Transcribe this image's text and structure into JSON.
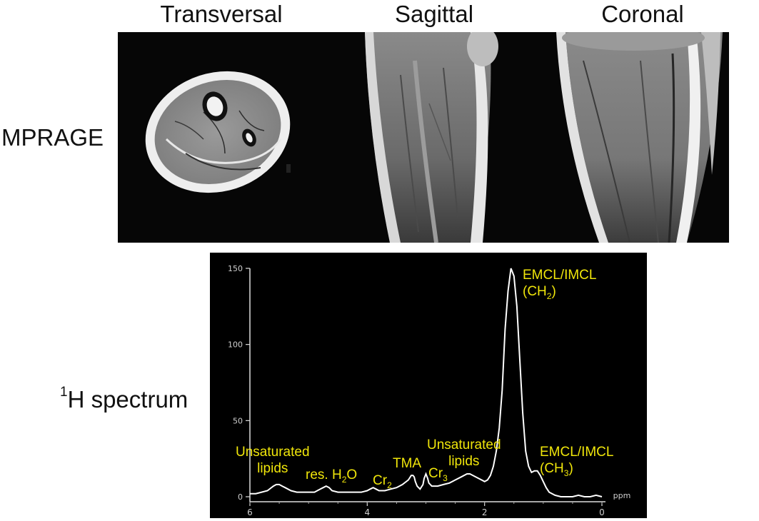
{
  "views": {
    "transversal": "Transversal",
    "sagittal": "Sagittal",
    "coronal": "Coronal"
  },
  "rows": {
    "mprage": "MPRAGE",
    "spectrum_iso": "1",
    "spectrum_rest": "H spectrum"
  },
  "colors": {
    "annotation": "#f0e60a",
    "spectrum_line": "#ffffff",
    "background": "#000000"
  },
  "chart_data": {
    "type": "line",
    "title": "",
    "xlabel": "ppm",
    "ylabel": "",
    "x_reversed": true,
    "xlim": [
      6,
      0
    ],
    "ylim": [
      0,
      150
    ],
    "x_ticks": [
      "6",
      "4",
      "2",
      "0"
    ],
    "y_ticks": [
      "0",
      "50",
      "100",
      "150"
    ],
    "series": [
      {
        "x": [
          6.0,
          5.9,
          5.8,
          5.7,
          5.6,
          5.55,
          5.5,
          5.45,
          5.4,
          5.3,
          5.2,
          5.1,
          5.0,
          4.9,
          4.8,
          4.75,
          4.7,
          4.65,
          4.6,
          4.5,
          4.4,
          4.3,
          4.2,
          4.1,
          4.0,
          3.95,
          3.9,
          3.85,
          3.8,
          3.7,
          3.6,
          3.5,
          3.4,
          3.3,
          3.25,
          3.22,
          3.2,
          3.18,
          3.15,
          3.1,
          3.05,
          3.03,
          3.0,
          2.97,
          2.95,
          2.9,
          2.8,
          2.7,
          2.6,
          2.5,
          2.4,
          2.3,
          2.25,
          2.2,
          2.1,
          2.0,
          1.95,
          1.9,
          1.85,
          1.8,
          1.75,
          1.7,
          1.65,
          1.6,
          1.55,
          1.5,
          1.45,
          1.4,
          1.35,
          1.3,
          1.25,
          1.2,
          1.15,
          1.1,
          1.05,
          1.0,
          0.95,
          0.9,
          0.8,
          0.7,
          0.6,
          0.5,
          0.4,
          0.3,
          0.2,
          0.1,
          0.0
        ],
        "y": [
          2,
          2,
          3,
          4,
          7,
          8,
          8,
          7,
          6,
          4,
          3,
          3,
          3,
          3,
          5,
          6,
          7,
          6,
          4,
          3,
          3,
          3,
          3,
          3,
          4,
          5,
          6,
          5,
          4,
          4,
          5,
          6,
          8,
          11,
          14,
          14,
          13,
          10,
          7,
          5,
          8,
          12,
          15,
          12,
          9,
          7,
          7,
          8,
          9,
          11,
          13,
          15,
          15,
          14,
          12,
          10,
          11,
          14,
          20,
          30,
          45,
          70,
          110,
          135,
          150,
          145,
          125,
          90,
          55,
          30,
          20,
          16,
          17,
          17,
          14,
          10,
          6,
          3,
          1,
          0,
          0,
          0,
          1,
          0,
          0,
          1,
          0
        ]
      }
    ]
  },
  "annotations": [
    {
      "id": "unsat-lipids-1",
      "line1": "Unsaturated",
      "line2": "lipids"
    },
    {
      "id": "res-h2o",
      "base": "res. H",
      "sub": "2",
      "tail": "O"
    },
    {
      "id": "cr2",
      "base": "Cr",
      "sub": "2"
    },
    {
      "id": "tma",
      "text": "TMA"
    },
    {
      "id": "cr3",
      "base": "Cr",
      "sub": "3"
    },
    {
      "id": "unsat-lipids-2",
      "line1": "Unsaturated",
      "line2": "lipids"
    },
    {
      "id": "emcl-ch2",
      "line1": "EMCL/IMCL",
      "pre": "(CH",
      "sub": "2",
      "post": ")"
    },
    {
      "id": "emcl-ch3",
      "line1": "EMCL/IMCL",
      "pre": "(CH",
      "sub": "3",
      "post": ")"
    }
  ]
}
